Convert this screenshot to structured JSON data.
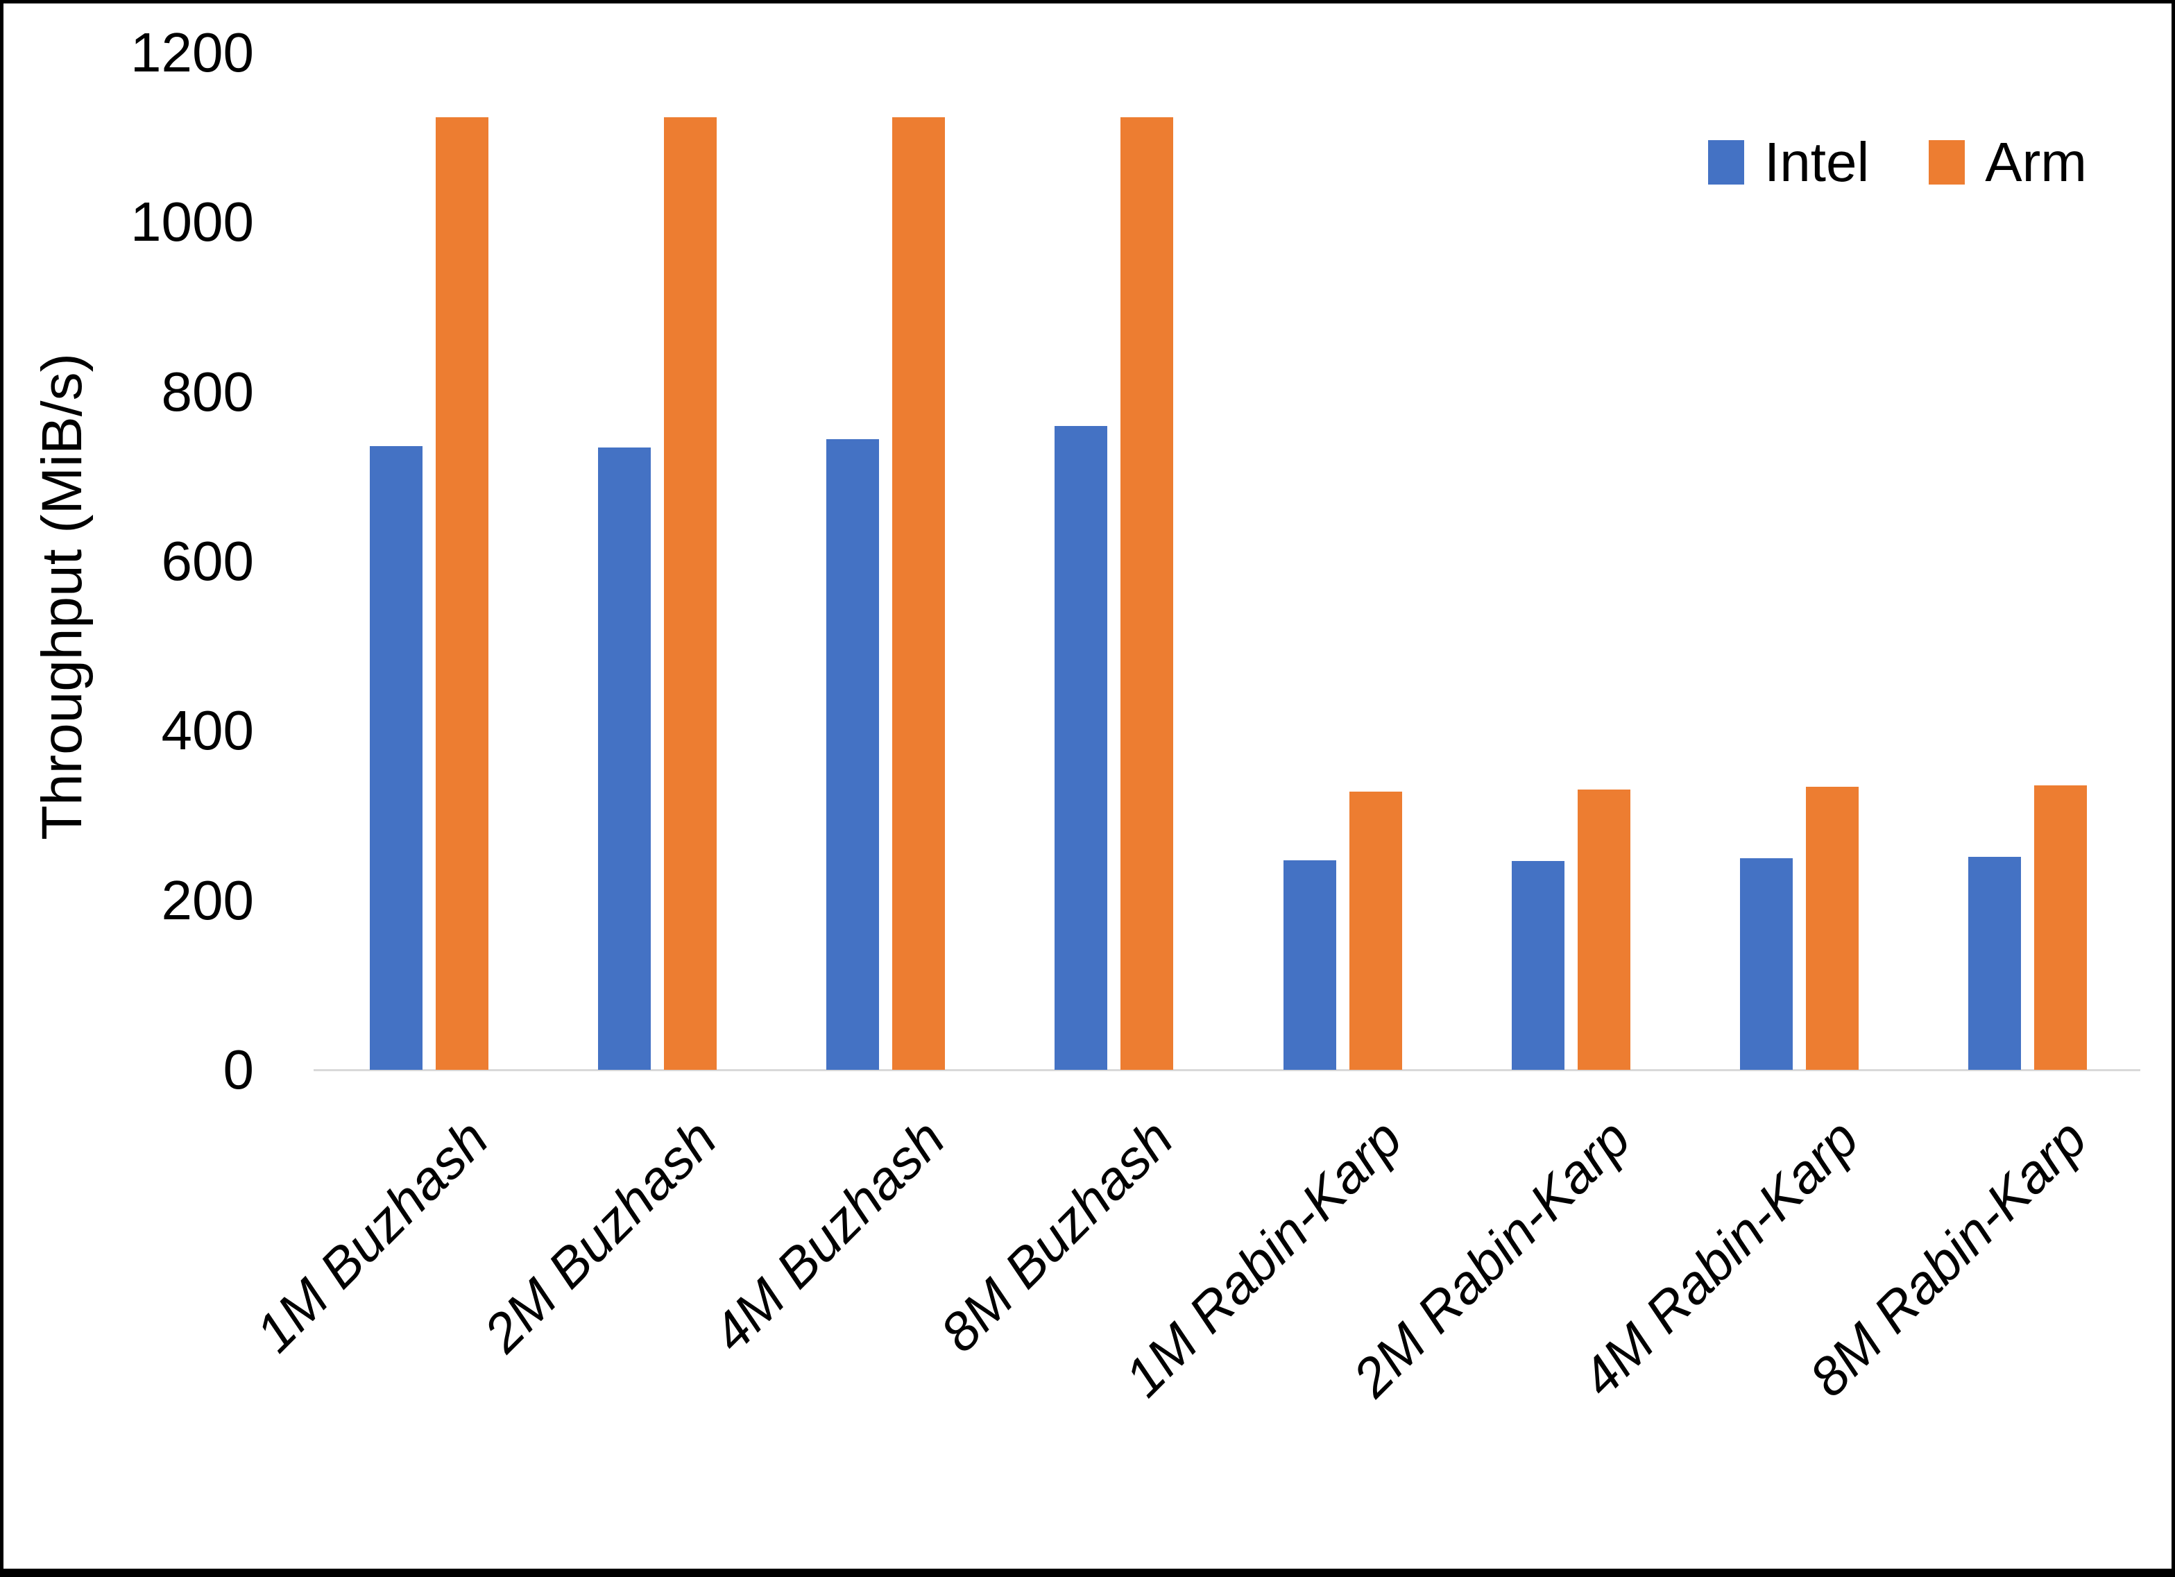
{
  "chart_data": {
    "type": "bar",
    "title": "",
    "xlabel": "",
    "ylabel": "Throughput (MiB/s)",
    "categories": [
      "1M Buzhash",
      "2M Buzhash",
      "4M Buzhash",
      "8M Buzhash",
      "1M Rabin-Karp",
      "2M Rabin-Karp",
      "4M Rabin-Karp",
      "8M Rabin-Karp"
    ],
    "series": [
      {
        "name": "Intel",
        "color": "#4472C4",
        "values": [
          736,
          734,
          744,
          760,
          247,
          246,
          250,
          251
        ]
      },
      {
        "name": "Arm",
        "color": "#ED7D31",
        "values": [
          1124,
          1124,
          1124,
          1124,
          328,
          331,
          334,
          336
        ]
      }
    ],
    "y_axis": {
      "min": 0,
      "max": 1200,
      "tick_step": 200,
      "ticks": [
        0,
        200,
        400,
        600,
        800,
        1000,
        1200
      ]
    },
    "grid": false,
    "legend_position": "top-right",
    "axis_line_color": "#D9D9D9",
    "text_color": "#000000"
  }
}
